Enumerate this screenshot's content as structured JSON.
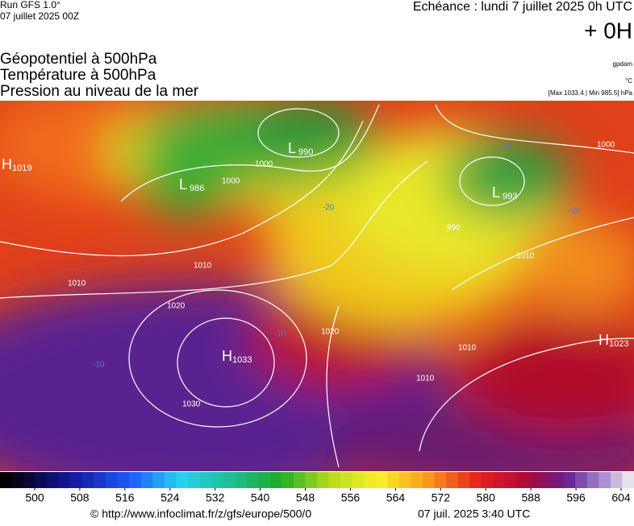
{
  "header": {
    "run": "Run GFS 1.0°",
    "run_date": "07 juillet 2025 00Z",
    "valid": "Echéance : lundi 7 juillet 2025 0h UTC",
    "lead": "+ 0H"
  },
  "titles": [
    "Géopotentiel à 500hPa",
    "Température à 500hPa",
    "Pression au niveau de la mer"
  ],
  "units": [
    "gpdam",
    "°C",
    "[Max 1033.4 | Min 985.5] hPa"
  ],
  "centers": [
    {
      "type": "H",
      "value": "1019"
    },
    {
      "type": "L",
      "value": "990"
    },
    {
      "type": "L",
      "value": "986"
    },
    {
      "type": "L",
      "value": "993"
    },
    {
      "type": "H",
      "value": "1033"
    },
    {
      "type": "H",
      "value": "1023"
    }
  ],
  "isobar_labels": [
    "1000",
    "1010",
    "1020",
    "1030",
    "1020",
    "1010",
    "1010",
    "1000",
    "1010",
    "1010",
    "990",
    "1000"
  ],
  "temperature_labels": [
    "-20",
    "-20",
    "-10",
    "-10",
    "-20"
  ],
  "colorbar": {
    "ticks": [
      500,
      508,
      516,
      524,
      532,
      540,
      548,
      556,
      564,
      572,
      580,
      588,
      596,
      604
    ]
  },
  "footer": {
    "url": "© http://www.infoclimat.fr/z/gfs/europe/500/0",
    "time": "07 juil. 2025  3:40 UTC"
  }
}
